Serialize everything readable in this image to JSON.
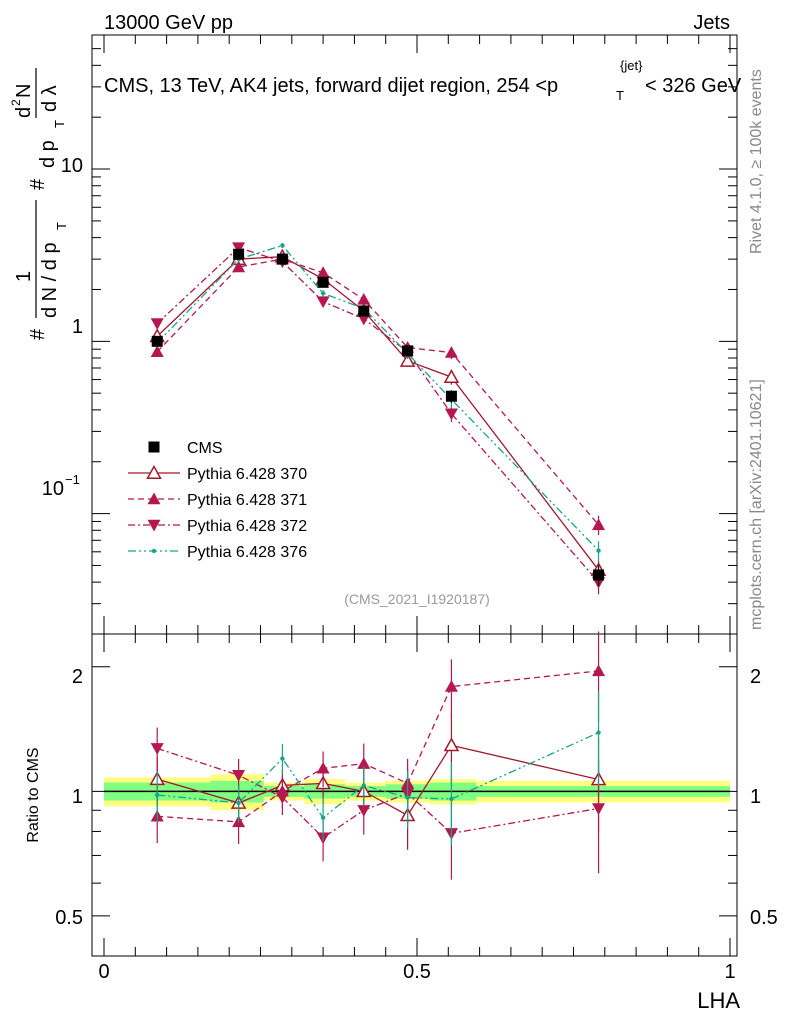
{
  "header": {
    "left": "13000 GeV pp",
    "right": "Jets"
  },
  "title": {
    "main": "CMS, 13 TeV, AK4 jets, forward dijet region, 254 <p",
    "sup": "{jet}",
    "sub": "T",
    "tail": "< 326 GeV"
  },
  "ylabel_main": {
    "parts": [
      "#",
      "1",
      "d N / d p",
      "T",
      "#",
      "d p",
      "T",
      "d",
      "2",
      "N",
      "d λ"
    ]
  },
  "side_labels": {
    "rivet": "Rivet 4.1.0, ≥ 100k events",
    "mcplots": "mcplots.cern.ch [arXiv:2401.10621]"
  },
  "analysis_id": "(CMS_2021_I1920187)",
  "ratio_ylabel": "Ratio to CMS",
  "xlabel": "LHA",
  "upper_ticks": [
    "10",
    "1",
    "10",
    "−1"
  ],
  "ratio_ticks": [
    "2",
    "1",
    "0.5"
  ],
  "x_ticks": [
    "0",
    "0.5",
    "1"
  ],
  "chart_data": {
    "type": "line",
    "xlabel": "LHA",
    "ylabel": "1/N dN/dλ",
    "xlim": [
      0,
      1
    ],
    "ylim": [
      0.02,
      60
    ],
    "ratio_ylim": [
      0.4,
      2.4
    ],
    "yscale": "log",
    "x": [
      0.085,
      0.215,
      0.285,
      0.35,
      0.415,
      0.485,
      0.555,
      0.79
    ],
    "bin_edges": [
      0,
      0.17,
      0.255,
      0.32,
      0.385,
      0.45,
      0.52,
      0.595,
      1.0
    ],
    "cms": {
      "name": "CMS",
      "values": [
        1.0,
        3.2,
        3.0,
        2.2,
        1.5,
        0.88,
        0.48,
        0.044
      ],
      "errors": [
        0.06,
        0.12,
        0.1,
        0.09,
        0.06,
        0.05,
        0.04,
        0.006
      ],
      "band_inner": [
        0.05,
        0.06,
        0.03,
        0.04,
        0.03,
        0.04,
        0.05,
        0.03
      ],
      "band_outer": [
        0.08,
        0.1,
        0.05,
        0.07,
        0.05,
        0.06,
        0.07,
        0.06
      ]
    },
    "series": [
      {
        "name": "Pythia 6.428 370",
        "color": "#a01a2e",
        "dash": "",
        "marker": "triangle-open",
        "values": [
          1.07,
          3.0,
          3.1,
          2.3,
          1.5,
          0.77,
          0.62,
          0.047
        ],
        "errors": [
          0.06,
          0.12,
          0.1,
          0.1,
          0.08,
          0.06,
          0.06,
          0.006
        ]
      },
      {
        "name": "Pythia 6.428 371",
        "color": "#b5174f",
        "dash": "6,4",
        "marker": "triangle-up",
        "values": [
          0.87,
          2.7,
          3.0,
          2.5,
          1.75,
          0.92,
          0.86,
          0.086
        ],
        "errors": [
          0.05,
          0.12,
          0.1,
          0.1,
          0.09,
          0.06,
          0.07,
          0.011
        ]
      },
      {
        "name": "Pythia 6.428 372",
        "color": "#b5174f",
        "dash": "7,3,2,3",
        "marker": "triangle-down",
        "values": [
          1.27,
          3.5,
          2.9,
          1.7,
          1.35,
          0.87,
          0.38,
          0.04
        ],
        "errors": [
          0.07,
          0.13,
          0.1,
          0.08,
          0.07,
          0.06,
          0.04,
          0.006
        ]
      },
      {
        "name": "Pythia 6.428 376",
        "color": "#17a58a",
        "dash": "8,3,2,3,2,3",
        "marker": "dot",
        "values": [
          0.98,
          3.0,
          3.6,
          1.9,
          1.55,
          0.85,
          0.46,
          0.061
        ],
        "errors": [
          0.06,
          0.12,
          0.12,
          0.09,
          0.07,
          0.06,
          0.05,
          0.008
        ]
      }
    ],
    "legend": [
      "CMS",
      "Pythia 6.428 370",
      "Pythia 6.428 371",
      "Pythia 6.428 372",
      "Pythia 6.428 376"
    ],
    "legend_position": "left-center"
  }
}
